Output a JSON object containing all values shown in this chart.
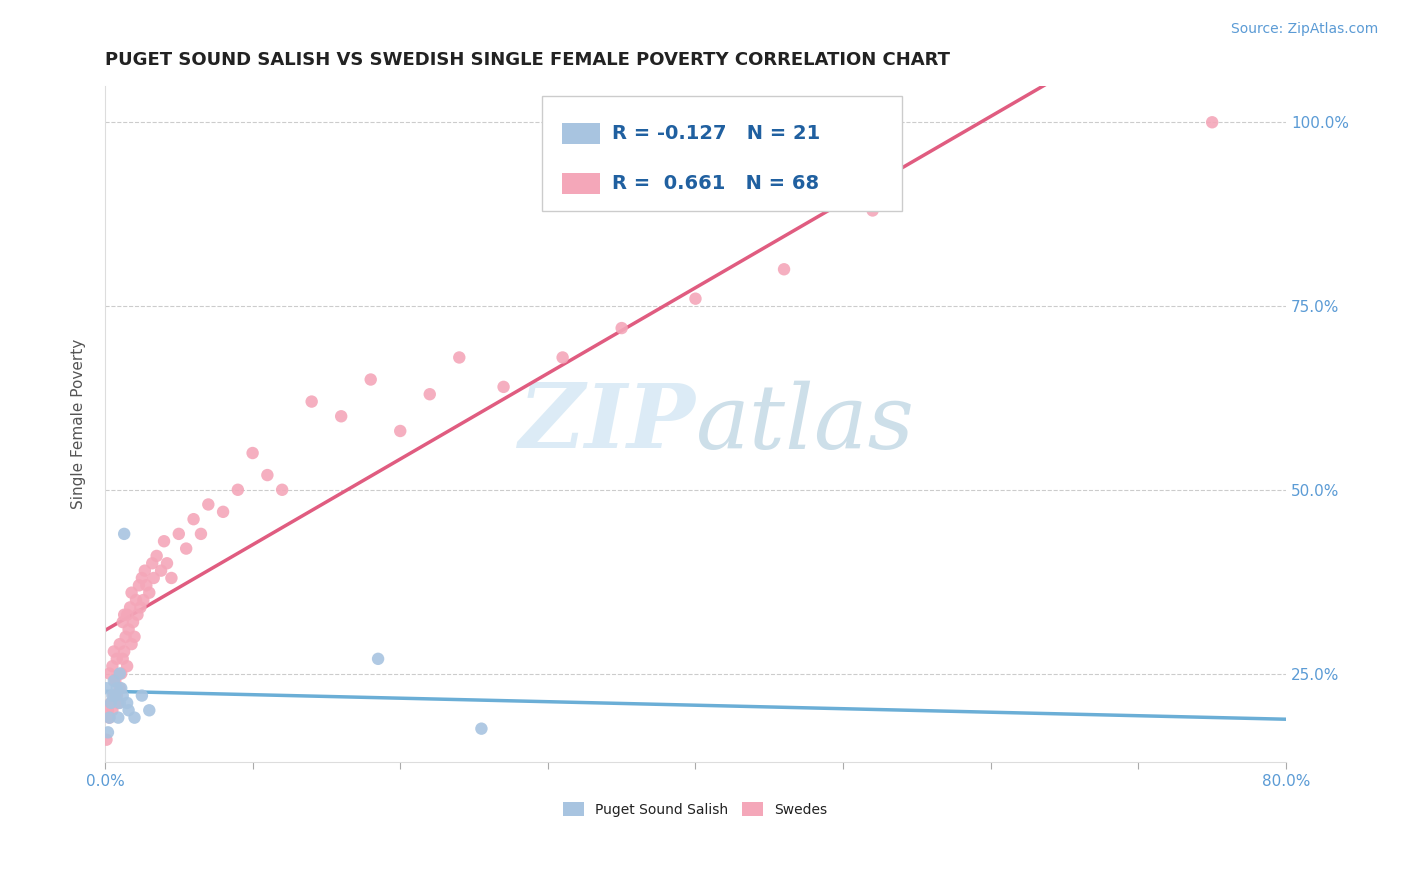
{
  "title": "PUGET SOUND SALISH VS SWEDISH SINGLE FEMALE POVERTY CORRELATION CHART",
  "source": "Source: ZipAtlas.com",
  "ylabel": "Single Female Poverty",
  "xlim": [
    0.0,
    0.8
  ],
  "ylim": [
    0.13,
    1.05
  ],
  "xticks": [
    0.0,
    0.1,
    0.2,
    0.3,
    0.4,
    0.5,
    0.6,
    0.7,
    0.8
  ],
  "yticks": [
    0.25,
    0.5,
    0.75,
    1.0
  ],
  "grid_color": "#cccccc",
  "background_color": "#ffffff",
  "salish": {
    "name": "Puget Sound Salish",
    "color": "#a8c4e0",
    "line_color": "#6baed6",
    "R": -0.127,
    "N": 21,
    "points_x": [
      0.001,
      0.002,
      0.003,
      0.004,
      0.005,
      0.006,
      0.007,
      0.008,
      0.009,
      0.01,
      0.01,
      0.011,
      0.012,
      0.013,
      0.015,
      0.016,
      0.02,
      0.025,
      0.03,
      0.185,
      0.255
    ],
    "points_y": [
      0.23,
      0.17,
      0.19,
      0.21,
      0.22,
      0.24,
      0.22,
      0.23,
      0.19,
      0.21,
      0.25,
      0.23,
      0.22,
      0.44,
      0.21,
      0.2,
      0.19,
      0.22,
      0.2,
      0.27,
      0.175
    ]
  },
  "swedes": {
    "name": "Swedes",
    "color": "#f4a7b9",
    "line_color": "#e05c80",
    "R": 0.661,
    "N": 68,
    "points_x": [
      0.001,
      0.002,
      0.003,
      0.003,
      0.004,
      0.005,
      0.005,
      0.006,
      0.006,
      0.007,
      0.008,
      0.008,
      0.009,
      0.01,
      0.01,
      0.011,
      0.012,
      0.012,
      0.013,
      0.013,
      0.014,
      0.015,
      0.015,
      0.016,
      0.017,
      0.018,
      0.018,
      0.019,
      0.02,
      0.021,
      0.022,
      0.023,
      0.024,
      0.025,
      0.026,
      0.027,
      0.028,
      0.03,
      0.032,
      0.033,
      0.035,
      0.038,
      0.04,
      0.042,
      0.045,
      0.05,
      0.055,
      0.06,
      0.065,
      0.07,
      0.08,
      0.09,
      0.1,
      0.11,
      0.12,
      0.14,
      0.16,
      0.18,
      0.2,
      0.22,
      0.24,
      0.27,
      0.31,
      0.35,
      0.4,
      0.46,
      0.52,
      0.75
    ],
    "points_y": [
      0.16,
      0.2,
      0.19,
      0.25,
      0.21,
      0.2,
      0.26,
      0.22,
      0.28,
      0.24,
      0.22,
      0.27,
      0.21,
      0.23,
      0.29,
      0.25,
      0.27,
      0.32,
      0.28,
      0.33,
      0.3,
      0.26,
      0.33,
      0.31,
      0.34,
      0.29,
      0.36,
      0.32,
      0.3,
      0.35,
      0.33,
      0.37,
      0.34,
      0.38,
      0.35,
      0.39,
      0.37,
      0.36,
      0.4,
      0.38,
      0.41,
      0.39,
      0.43,
      0.4,
      0.38,
      0.44,
      0.42,
      0.46,
      0.44,
      0.48,
      0.47,
      0.5,
      0.55,
      0.52,
      0.5,
      0.62,
      0.6,
      0.65,
      0.58,
      0.63,
      0.68,
      0.64,
      0.68,
      0.72,
      0.76,
      0.8,
      0.88,
      1.0
    ]
  },
  "legend": {
    "salish_R": "-0.127",
    "salish_N": "21",
    "swedes_R": "0.661",
    "swedes_N": "68"
  },
  "watermark_zip": "ZIP",
  "watermark_atlas": "atlas",
  "title_fontsize": 13,
  "axis_label_fontsize": 11,
  "tick_fontsize": 11,
  "source_fontsize": 10,
  "legend_fontsize": 14
}
